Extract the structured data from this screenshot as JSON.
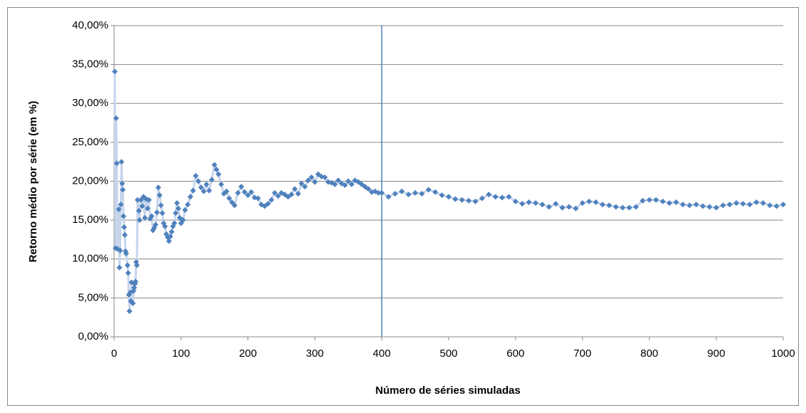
{
  "chart_data": {
    "type": "scatter",
    "x_label": "Número de séries simuladas",
    "y_label": "Retorno médio por série (em %)",
    "color": "#4f81bd",
    "line_color": "#c6d5ec",
    "reference_line_x": 400,
    "xlim": [
      0,
      1000
    ],
    "xticks": [
      0,
      100,
      200,
      300,
      400,
      500,
      600,
      700,
      800,
      900,
      1000
    ],
    "ylim": [
      0,
      40
    ],
    "yticks": [
      {
        "value": 0,
        "label": "0,00%"
      },
      {
        "value": 5,
        "label": "5,00%"
      },
      {
        "value": 10,
        "label": "10,00%"
      },
      {
        "value": 15,
        "label": "15,00%"
      },
      {
        "value": 20,
        "label": "20,00%"
      },
      {
        "value": 25,
        "label": "25,00%"
      },
      {
        "value": 30,
        "label": "30,00%"
      },
      {
        "value": 35,
        "label": "35,00%"
      },
      {
        "value": 40,
        "label": "40,00%"
      }
    ],
    "grid": true,
    "x": [
      1,
      2,
      3,
      4,
      5,
      7,
      8,
      9,
      10,
      11,
      12,
      13,
      14,
      15,
      16,
      17,
      18,
      20,
      21,
      22,
      23,
      24,
      25,
      26,
      27,
      28,
      29,
      30,
      31,
      32,
      33,
      34,
      35,
      37,
      38,
      40,
      42,
      44,
      46,
      48,
      50,
      52,
      54,
      56,
      58,
      60,
      62,
      64,
      66,
      68,
      70,
      72,
      74,
      76,
      78,
      80,
      82,
      84,
      86,
      88,
      90,
      92,
      94,
      96,
      98,
      100,
      103,
      106,
      110,
      114,
      118,
      122,
      126,
      130,
      134,
      138,
      142,
      146,
      150,
      153,
      156,
      160,
      164,
      168,
      172,
      176,
      180,
      185,
      190,
      195,
      200,
      205,
      210,
      215,
      220,
      225,
      230,
      235,
      240,
      245,
      250,
      255,
      260,
      265,
      270,
      275,
      280,
      285,
      290,
      295,
      300,
      305,
      310,
      315,
      320,
      325,
      330,
      335,
      340,
      345,
      350,
      355,
      360,
      365,
      370,
      375,
      380,
      385,
      390,
      395,
      400,
      410,
      420,
      430,
      440,
      450,
      460,
      470,
      480,
      490,
      500,
      510,
      520,
      530,
      540,
      550,
      560,
      570,
      580,
      590,
      600,
      610,
      620,
      630,
      640,
      650,
      660,
      670,
      680,
      690,
      700,
      710,
      720,
      730,
      740,
      750,
      760,
      770,
      780,
      790,
      800,
      810,
      820,
      830,
      840,
      850,
      860,
      870,
      880,
      890,
      900,
      910,
      920,
      930,
      940,
      950,
      960,
      970,
      980,
      990,
      1000
    ],
    "values": [
      34.1,
      11.4,
      28.1,
      22.3,
      11.3,
      16.4,
      8.9,
      11.1,
      17.0,
      22.5,
      19.7,
      18.9,
      15.5,
      14.1,
      13.1,
      11.0,
      10.7,
      9.2,
      8.2,
      5.4,
      3.3,
      5.7,
      4.6,
      7.0,
      4.4,
      4.3,
      5.9,
      6.3,
      6.8,
      7.1,
      9.6,
      9.2,
      17.6,
      16.2,
      15.0,
      17.6,
      16.8,
      18.0,
      15.3,
      17.7,
      16.5,
      17.6,
      15.2,
      15.5,
      13.7,
      14.0,
      14.4,
      16.0,
      19.2,
      18.2,
      16.9,
      15.9,
      14.6,
      14.2,
      13.2,
      12.8,
      12.3,
      12.9,
      13.5,
      14.2,
      14.6,
      15.9,
      17.2,
      16.5,
      15.3,
      14.6,
      15.0,
      16.3,
      17.0,
      18.0,
      18.8,
      20.7,
      20.0,
      19.2,
      18.7,
      19.6,
      18.8,
      20.2,
      22.1,
      21.5,
      20.9,
      19.6,
      18.4,
      18.7,
      17.8,
      17.3,
      16.9,
      18.5,
      19.3,
      18.6,
      18.2,
      18.6,
      17.9,
      17.8,
      17.0,
      16.8,
      17.1,
      17.6,
      18.5,
      18.1,
      18.5,
      18.3,
      18.0,
      18.3,
      19.0,
      18.4,
      19.7,
      19.3,
      20.1,
      20.5,
      19.9,
      20.9,
      20.6,
      20.5,
      19.9,
      19.8,
      19.6,
      20.1,
      19.7,
      19.5,
      20.0,
      19.6,
      20.1,
      19.9,
      19.6,
      19.3,
      19.0,
      18.6,
      18.7,
      18.5,
      18.5,
      18.0,
      18.4,
      18.7,
      18.3,
      18.5,
      18.4,
      18.9,
      18.6,
      18.2,
      18.0,
      17.7,
      17.6,
      17.5,
      17.4,
      17.8,
      18.3,
      18.0,
      17.9,
      18.0,
      17.4,
      17.1,
      17.3,
      17.2,
      17.0,
      16.7,
      17.1,
      16.6,
      16.7,
      16.5,
      17.2,
      17.4,
      17.3,
      17.0,
      16.9,
      16.7,
      16.6,
      16.6,
      16.7,
      17.5,
      17.6,
      17.6,
      17.4,
      17.2,
      17.3,
      17.0,
      16.9,
      17.0,
      16.8,
      16.7,
      16.6,
      16.9,
      17.0,
      17.2,
      17.1,
      17.0,
      17.3,
      17.2,
      16.9,
      16.8,
      17.0
    ]
  }
}
